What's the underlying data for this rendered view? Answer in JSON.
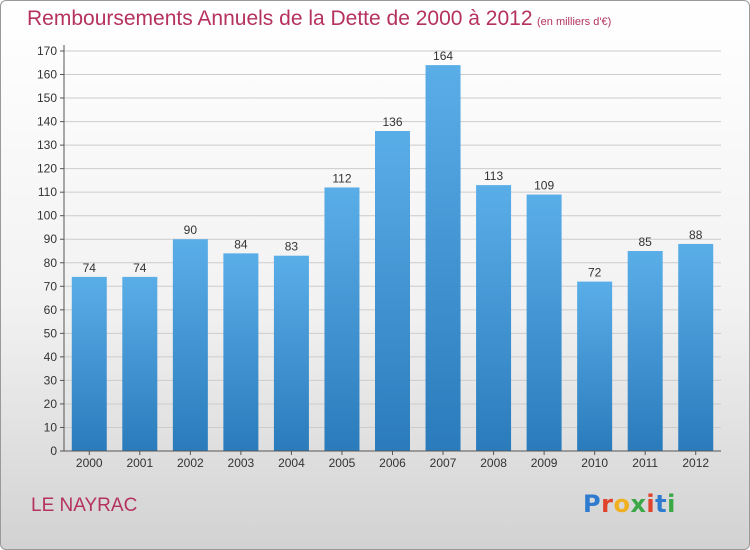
{
  "title": "Remboursements Annuels de la Dette de 2000 à 2012",
  "subtitle": "(en milliers d'€)",
  "place": "LE NAYRAC",
  "logo": {
    "text": "Proxiti",
    "letter_colors": [
      "#2f7bd0",
      "#e0432b",
      "#f0b020",
      "#3aa844",
      "#e0432b",
      "#2f7bd0",
      "#3aa844"
    ]
  },
  "colors": {
    "title": "#b5325e",
    "bar_top": "#5aaee8",
    "bar_bottom": "#2a7bbb",
    "axis": "#555555",
    "grid": "#cccccc",
    "text": "#333333"
  },
  "chart_data": {
    "type": "bar",
    "categories": [
      "2000",
      "2001",
      "2002",
      "2003",
      "2004",
      "2005",
      "2006",
      "2007",
      "2008",
      "2009",
      "2010",
      "2011",
      "2012"
    ],
    "values": [
      74,
      74,
      90,
      84,
      83,
      112,
      136,
      164,
      113,
      109,
      72,
      85,
      88
    ],
    "ylim": [
      0,
      170
    ],
    "yticks": [
      0,
      10,
      20,
      30,
      40,
      50,
      60,
      70,
      80,
      90,
      100,
      110,
      120,
      130,
      140,
      150,
      160,
      170
    ],
    "grid": true,
    "data_labels": true
  }
}
